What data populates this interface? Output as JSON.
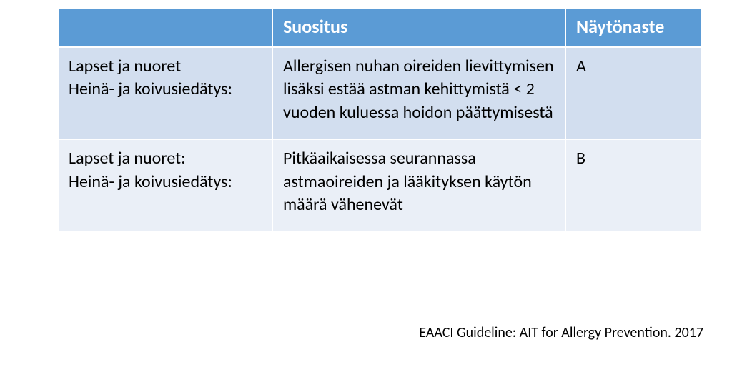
{
  "table": {
    "header_bg": "#5b9bd5",
    "header_fg": "#ffffff",
    "row_colors": [
      "#d2deef",
      "#eaeff7"
    ],
    "cell_border": "#ffffff",
    "header_fontsize": 26,
    "body_fontsize": 24,
    "cell_padding": "10px 14px 20px 14px",
    "header_padding": "8px 14px 10px 14px",
    "columns": [
      "",
      "Suositus",
      "Näytönaste"
    ],
    "rows": [
      {
        "c0": "Lapset ja nuoret\nHeinä- ja koivusiedätys:",
        "c1": "Allergisen nuhan oireiden lievittymisen lisäksi estää astman kehittymistä < 2 vuoden kuluessa hoidon päättymisestä",
        "c2": "A"
      },
      {
        "c0": "Lapset ja nuoret:\nHeinä- ja koivusiedätys:",
        "c1": "Pitkäaikaisessa seurannassa astmaoireiden ja lääkityksen käytön määrä vähenevät",
        "c2": "B"
      }
    ]
  },
  "source": {
    "text": "EAACI Guideline: AIT for Allergy Prevention. 2017",
    "color": "#000000",
    "fontsize": 20
  }
}
